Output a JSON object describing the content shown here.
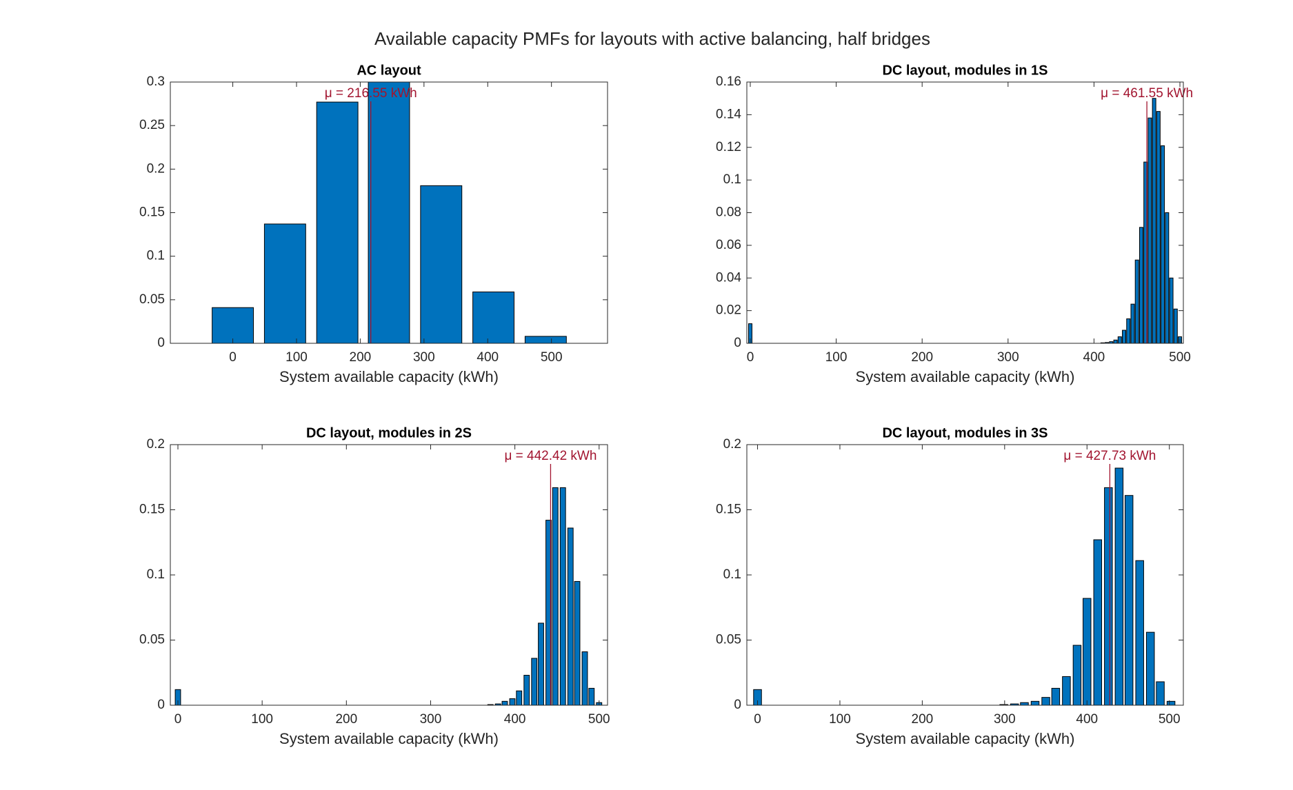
{
  "title": "Available capacity PMFs for layouts with active balancing, half bridges",
  "chart_data": [
    {
      "type": "bar",
      "title": "AC layout",
      "xlabel": "System available capacity (kWh)",
      "x": [
        0,
        82,
        164,
        245,
        327,
        409,
        491
      ],
      "values": [
        0.041,
        0.137,
        0.277,
        0.31,
        0.181,
        0.059,
        0.008
      ],
      "xlim": [
        -98,
        588
      ],
      "xticks": [
        0,
        100,
        200,
        300,
        400,
        500
      ],
      "ylim": [
        0,
        0.3
      ],
      "yticks": [
        0,
        0.05,
        0.1,
        0.15,
        0.2,
        0.25,
        0.3
      ],
      "color": "#0072bd",
      "edgecolor": "#000000",
      "mean": 216.55,
      "annotation": "μ = 216.55 kWh",
      "annotation_color": "#a2142f"
    },
    {
      "type": "bar",
      "title": "DC layout, modules in 1S",
      "xlabel": "System available capacity (kWh)",
      "x": [
        0,
        410,
        415,
        420,
        425,
        430,
        435,
        440,
        445,
        450,
        455,
        460,
        465,
        470,
        475,
        480,
        485,
        490,
        495,
        500
      ],
      "values": [
        0.012,
        0.0003,
        0.0005,
        0.001,
        0.002,
        0.004,
        0.008,
        0.015,
        0.024,
        0.051,
        0.071,
        0.111,
        0.138,
        0.15,
        0.142,
        0.121,
        0.08,
        0.04,
        0.021,
        0.004
      ],
      "xlim": [
        -4,
        504
      ],
      "xticks": [
        0,
        100,
        200,
        300,
        400,
        500
      ],
      "ylim": [
        0,
        0.16
      ],
      "yticks": [
        0,
        0.02,
        0.04,
        0.06,
        0.08,
        0.1,
        0.12,
        0.14,
        0.16
      ],
      "color": "#0072bd",
      "edgecolor": "#000000",
      "mean": 461.55,
      "annotation": "μ = 461.55 kWh",
      "annotation_color": "#a2142f"
    },
    {
      "type": "bar",
      "title": "DC layout, modules in 2S",
      "xlabel": "System available capacity (kWh)",
      "x": [
        0,
        371,
        380,
        388,
        397,
        405,
        414,
        423,
        431,
        440,
        448,
        457,
        466,
        474,
        483,
        491,
        500
      ],
      "values": [
        0.012,
        0.0005,
        0.001,
        0.003,
        0.005,
        0.011,
        0.023,
        0.036,
        0.063,
        0.142,
        0.167,
        0.167,
        0.136,
        0.095,
        0.041,
        0.013,
        0.002
      ],
      "xlim": [
        -9,
        510
      ],
      "xticks": [
        0,
        100,
        200,
        300,
        400,
        500
      ],
      "ylim": [
        0,
        0.2
      ],
      "yticks": [
        0,
        0.05,
        0.1,
        0.15,
        0.2
      ],
      "color": "#0072bd",
      "edgecolor": "#000000",
      "mean": 442.42,
      "annotation": "μ = 442.42 kWh",
      "annotation_color": "#a2142f"
    },
    {
      "type": "bar",
      "title": "DC layout, modules in 3S",
      "xlabel": "System available capacity (kWh)",
      "x": [
        0,
        299,
        312,
        324,
        337,
        350,
        362,
        375,
        388,
        400,
        413,
        426,
        439,
        451,
        464,
        477,
        489,
        502
      ],
      "values": [
        0.012,
        0.0005,
        0.001,
        0.002,
        0.003,
        0.006,
        0.013,
        0.022,
        0.046,
        0.082,
        0.127,
        0.167,
        0.182,
        0.161,
        0.111,
        0.056,
        0.018,
        0.003
      ],
      "xlim": [
        -13,
        517
      ],
      "xticks": [
        0,
        100,
        200,
        300,
        400,
        500
      ],
      "ylim": [
        0,
        0.2
      ],
      "yticks": [
        0,
        0.05,
        0.1,
        0.15,
        0.2
      ],
      "color": "#0072bd",
      "edgecolor": "#000000",
      "mean": 427.73,
      "annotation": "μ = 427.73 kWh",
      "annotation_color": "#a2142f"
    }
  ]
}
